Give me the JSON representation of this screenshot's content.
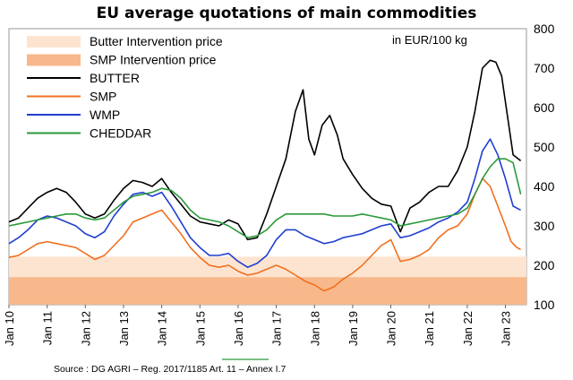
{
  "chart_data": {
    "type": "line",
    "title": "EU average quotations of main commodities",
    "unit_label": "in EUR/100 kg",
    "source": "Source : DG AGRI – Reg. 2017/1185 Art. 11 – Annex I.7",
    "ylim": [
      100,
      800
    ],
    "yticks": [
      100,
      200,
      300,
      400,
      500,
      600,
      700,
      800
    ],
    "xlim": [
      2010.0,
      2023.55
    ],
    "xticks": [
      {
        "label": "Jan 10",
        "x": 2010
      },
      {
        "label": "Jan 11",
        "x": 2011
      },
      {
        "label": "Jan 12",
        "x": 2012
      },
      {
        "label": "Jan 13",
        "x": 2013
      },
      {
        "label": "Jan 14",
        "x": 2014
      },
      {
        "label": "Jan 15",
        "x": 2015
      },
      {
        "label": "Jan 16",
        "x": 2016
      },
      {
        "label": "Jan 17",
        "x": 2017
      },
      {
        "label": "Jan 18",
        "x": 2018
      },
      {
        "label": "Jan 19",
        "x": 2019
      },
      {
        "label": "Jan 20",
        "x": 2020
      },
      {
        "label": "Jan 21",
        "x": 2021
      },
      {
        "label": "Jan 22",
        "x": 2022
      },
      {
        "label": "Jan 23",
        "x": 2023
      }
    ],
    "bands": [
      {
        "name": "Butter Intervention price",
        "from": 170,
        "to": 222,
        "color": "#fde4d0"
      },
      {
        "name": "SMP Intervention price",
        "from": 100,
        "to": 170,
        "color": "#f8b88b"
      }
    ],
    "series": [
      {
        "name": "BUTTER",
        "color": "#000000",
        "x": [
          2010.0,
          2010.25,
          2010.5,
          2010.75,
          2011.0,
          2011.25,
          2011.5,
          2011.75,
          2012.0,
          2012.25,
          2012.5,
          2012.75,
          2013.0,
          2013.25,
          2013.5,
          2013.75,
          2014.0,
          2014.25,
          2014.5,
          2014.75,
          2015.0,
          2015.25,
          2015.5,
          2015.75,
          2016.0,
          2016.25,
          2016.5,
          2016.75,
          2017.0,
          2017.25,
          2017.5,
          2017.7,
          2017.85,
          2018.0,
          2018.2,
          2018.4,
          2018.6,
          2018.75,
          2019.0,
          2019.25,
          2019.5,
          2019.75,
          2020.0,
          2020.25,
          2020.5,
          2020.75,
          2021.0,
          2021.25,
          2021.5,
          2021.75,
          2022.0,
          2022.2,
          2022.4,
          2022.6,
          2022.75,
          2022.9,
          2023.05,
          2023.2,
          2023.4
        ],
        "values": [
          310,
          320,
          345,
          370,
          385,
          395,
          385,
          360,
          330,
          320,
          330,
          365,
          395,
          415,
          410,
          400,
          420,
          385,
          355,
          325,
          310,
          305,
          300,
          315,
          305,
          265,
          270,
          330,
          400,
          470,
          590,
          645,
          520,
          480,
          555,
          580,
          530,
          470,
          430,
          395,
          370,
          355,
          350,
          285,
          345,
          360,
          385,
          400,
          400,
          440,
          500,
          590,
          700,
          720,
          715,
          680,
          580,
          480,
          465
        ]
      },
      {
        "name": "SMP",
        "color": "#f07020",
        "x": [
          2010.0,
          2010.25,
          2010.5,
          2010.75,
          2011.0,
          2011.25,
          2011.5,
          2011.75,
          2012.0,
          2012.25,
          2012.5,
          2012.75,
          2013.0,
          2013.25,
          2013.5,
          2013.75,
          2014.0,
          2014.25,
          2014.5,
          2014.75,
          2015.0,
          2015.25,
          2015.5,
          2015.75,
          2016.0,
          2016.25,
          2016.5,
          2016.75,
          2017.0,
          2017.25,
          2017.5,
          2017.75,
          2018.0,
          2018.25,
          2018.5,
          2018.75,
          2019.0,
          2019.25,
          2019.5,
          2019.75,
          2020.0,
          2020.25,
          2020.5,
          2020.75,
          2021.0,
          2021.25,
          2021.5,
          2021.75,
          2022.0,
          2022.2,
          2022.4,
          2022.6,
          2022.8,
          2023.0,
          2023.15,
          2023.3,
          2023.4
        ],
        "values": [
          220,
          225,
          240,
          255,
          260,
          255,
          250,
          245,
          230,
          215,
          225,
          250,
          275,
          310,
          320,
          330,
          340,
          310,
          280,
          245,
          220,
          200,
          195,
          200,
          185,
          175,
          180,
          190,
          200,
          190,
          175,
          160,
          150,
          135,
          145,
          165,
          180,
          200,
          225,
          250,
          265,
          210,
          215,
          225,
          240,
          270,
          290,
          300,
          330,
          380,
          420,
          400,
          350,
          300,
          260,
          245,
          240
        ]
      },
      {
        "name": "WMP",
        "color": "#1f3fd0",
        "x": [
          2010.0,
          2010.25,
          2010.5,
          2010.75,
          2011.0,
          2011.25,
          2011.5,
          2011.75,
          2012.0,
          2012.25,
          2012.5,
          2012.75,
          2013.0,
          2013.25,
          2013.5,
          2013.75,
          2014.0,
          2014.25,
          2014.5,
          2014.75,
          2015.0,
          2015.25,
          2015.5,
          2015.75,
          2016.0,
          2016.25,
          2016.5,
          2016.75,
          2017.0,
          2017.25,
          2017.5,
          2017.75,
          2018.0,
          2018.25,
          2018.5,
          2018.75,
          2019.0,
          2019.25,
          2019.5,
          2019.75,
          2020.0,
          2020.25,
          2020.5,
          2020.75,
          2021.0,
          2021.25,
          2021.5,
          2021.75,
          2022.0,
          2022.2,
          2022.4,
          2022.6,
          2022.8,
          2023.0,
          2023.2,
          2023.4
        ],
        "values": [
          255,
          270,
          290,
          315,
          325,
          320,
          310,
          300,
          280,
          270,
          285,
          325,
          355,
          380,
          385,
          375,
          385,
          350,
          310,
          270,
          245,
          225,
          225,
          230,
          210,
          195,
          205,
          225,
          265,
          290,
          290,
          275,
          265,
          255,
          260,
          270,
          275,
          280,
          290,
          300,
          305,
          270,
          275,
          285,
          295,
          310,
          320,
          335,
          360,
          420,
          490,
          520,
          480,
          420,
          350,
          340
        ]
      },
      {
        "name": "CHEDDAR",
        "color": "#2a9a3a",
        "x": [
          2010.0,
          2010.25,
          2010.5,
          2010.75,
          2011.0,
          2011.25,
          2011.5,
          2011.75,
          2012.0,
          2012.25,
          2012.5,
          2012.75,
          2013.0,
          2013.25,
          2013.5,
          2013.75,
          2014.0,
          2014.25,
          2014.5,
          2014.75,
          2015.0,
          2015.25,
          2015.5,
          2015.75,
          2016.0,
          2016.25,
          2016.5,
          2016.75,
          2017.0,
          2017.25,
          2017.5,
          2017.75,
          2018.0,
          2018.25,
          2018.5,
          2018.75,
          2019.0,
          2019.25,
          2019.5,
          2019.75,
          2020.0,
          2020.25,
          2020.5,
          2020.75,
          2021.0,
          2021.25,
          2021.5,
          2021.75,
          2022.0,
          2022.2,
          2022.4,
          2022.6,
          2022.8,
          2023.0,
          2023.2,
          2023.4
        ],
        "values": [
          300,
          305,
          310,
          315,
          320,
          325,
          330,
          330,
          320,
          315,
          320,
          340,
          360,
          375,
          380,
          385,
          395,
          390,
          370,
          340,
          320,
          315,
          310,
          300,
          285,
          270,
          275,
          290,
          315,
          330,
          330,
          330,
          330,
          330,
          325,
          325,
          325,
          330,
          325,
          320,
          315,
          300,
          305,
          310,
          315,
          320,
          325,
          330,
          345,
          380,
          420,
          450,
          470,
          470,
          460,
          380
        ]
      }
    ]
  }
}
